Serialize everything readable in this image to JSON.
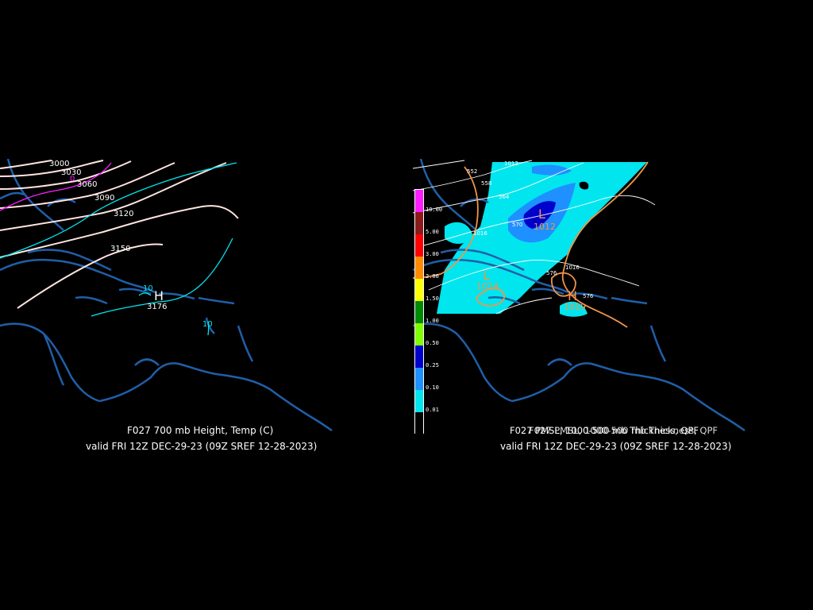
{
  "left_panel": {
    "title": "F027 700 mb Height, Temp (C)",
    "valid": "valid FRI 12Z DEC-29-23 (09Z SREF 12-28-2023)",
    "height_labels": [
      "3000",
      "3030",
      "3060",
      "3090",
      "3120",
      "3150"
    ],
    "temp_labels": [
      "0",
      "10",
      "10"
    ],
    "high_center": {
      "symbol": "H",
      "value": "3176"
    }
  },
  "right_panel": {
    "title_overlap_a": "F027 PMSL, 1000-500 mb Thickness, QPF",
    "title_overlap_b": "F027 PMSL, 1000-500 mb Thickness, QPF",
    "valid": "valid FRI 12Z DEC-29-23 (09Z SREF 12-28-2023)",
    "isobar_labels": [
      "1012",
      "1016",
      "1016"
    ],
    "thickness_labels": [
      "552",
      "558",
      "564",
      "570",
      "576",
      "576"
    ],
    "low_centers": [
      {
        "symbol": "L",
        "value": "1012"
      },
      {
        "symbol": "L",
        "value": "1014"
      }
    ],
    "high_center": {
      "symbol": "H",
      "value": "1019"
    },
    "qpf_scale": [
      {
        "label": "10.00",
        "color": "#ff1dff"
      },
      {
        "label": "5.00",
        "color": "#8b1a1a"
      },
      {
        "label": "3.00",
        "color": "#ff0000"
      },
      {
        "label": "2.00",
        "color": "#ff8c00"
      },
      {
        "label": "1.50",
        "color": "#ffff00"
      },
      {
        "label": "1.00",
        "color": "#008b00"
      },
      {
        "label": "0.50",
        "color": "#7fff00"
      },
      {
        "label": "0.25",
        "color": "#0000cd"
      },
      {
        "label": "0.10",
        "color": "#1e90ff"
      },
      {
        "label": "0.01",
        "color": "#00e5ee"
      },
      {
        "label": "",
        "color": "#000000"
      }
    ]
  },
  "colors": {
    "coast": "#1f5fa8",
    "height_contour": "#ffe4e1",
    "temp_contour": "#00e5ee",
    "isobar": "#f0954a",
    "thickness": "#ffffff",
    "qpf_light": "#00e5ee",
    "qpf_mid": "#1e90ff",
    "qpf_heavy": "#0000cd"
  }
}
